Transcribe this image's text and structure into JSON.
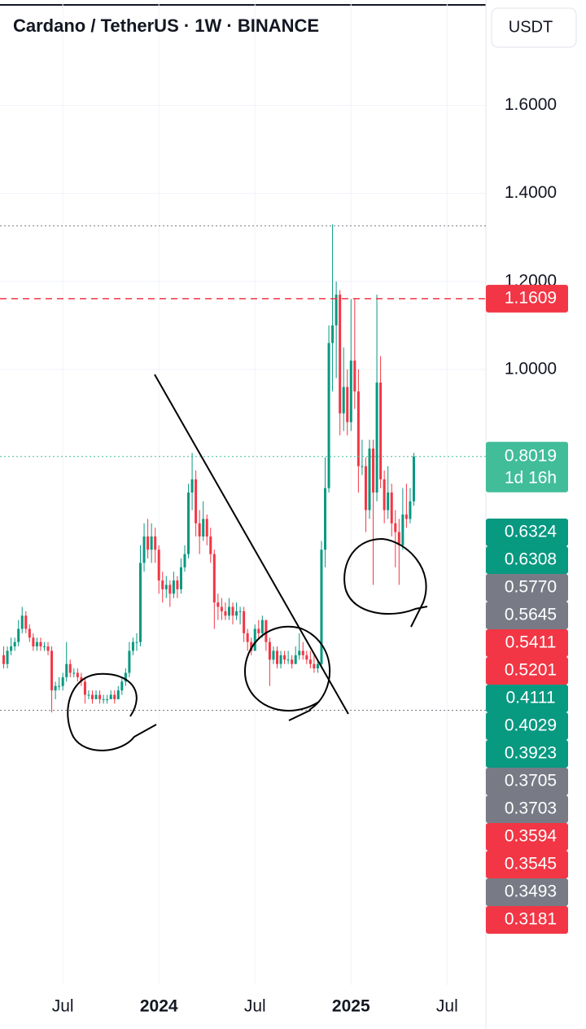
{
  "chart_data": {
    "type": "candlestick",
    "title": "Cardano / TetherUS · 1W · BINANCE",
    "currency": "USDT",
    "colors": {
      "up": "#089981",
      "down": "#f23645"
    },
    "open": [
      0.35,
      0.33,
      0.36,
      0.37,
      0.38,
      0.41,
      0.44,
      0.41,
      0.39,
      0.37,
      0.38,
      0.37,
      0.37,
      0.36,
      0.27,
      0.28,
      0.28,
      0.3,
      0.33,
      0.31,
      0.31,
      0.3,
      0.29,
      0.26,
      0.26,
      0.25,
      0.26,
      0.25,
      0.25,
      0.25,
      0.26,
      0.25,
      0.27,
      0.29,
      0.31,
      0.36,
      0.38,
      0.38,
      0.56,
      0.62,
      0.59,
      0.62,
      0.59,
      0.52,
      0.5,
      0.51,
      0.49,
      0.52,
      0.5,
      0.55,
      0.58,
      0.72,
      0.75,
      0.65,
      0.62,
      0.66,
      0.62,
      0.58,
      0.47,
      0.46,
      0.45,
      0.44,
      0.46,
      0.44,
      0.45,
      0.45,
      0.4,
      0.38,
      0.36,
      0.41,
      0.4,
      0.43,
      0.38,
      0.34,
      0.36,
      0.33,
      0.35,
      0.34,
      0.34,
      0.33,
      0.35,
      0.36,
      0.35,
      0.34,
      0.33,
      0.32,
      0.33,
      0.59,
      0.73,
      1.06,
      1.1,
      1.17,
      0.9,
      0.96,
      0.88,
      1.02,
      0.95,
      0.78,
      0.78,
      0.68,
      0.82,
      0.72,
      0.97,
      0.75,
      0.68,
      0.72,
      0.65,
      0.63,
      0.6,
      0.67,
      0.66,
      0.7
    ],
    "high": [
      0.37,
      0.37,
      0.39,
      0.39,
      0.43,
      0.46,
      0.45,
      0.42,
      0.4,
      0.39,
      0.39,
      0.38,
      0.38,
      0.37,
      0.29,
      0.3,
      0.31,
      0.38,
      0.34,
      0.32,
      0.32,
      0.31,
      0.3,
      0.27,
      0.27,
      0.27,
      0.27,
      0.26,
      0.26,
      0.27,
      0.27,
      0.28,
      0.3,
      0.32,
      0.38,
      0.39,
      0.4,
      0.6,
      0.65,
      0.66,
      0.65,
      0.64,
      0.6,
      0.54,
      0.53,
      0.52,
      0.54,
      0.53,
      0.57,
      0.6,
      0.74,
      0.81,
      0.77,
      0.68,
      0.7,
      0.67,
      0.64,
      0.59,
      0.49,
      0.48,
      0.47,
      0.48,
      0.47,
      0.47,
      0.46,
      0.46,
      0.41,
      0.39,
      0.42,
      0.43,
      0.44,
      0.43,
      0.39,
      0.37,
      0.37,
      0.36,
      0.36,
      0.36,
      0.35,
      0.37,
      0.4,
      0.38,
      0.36,
      0.36,
      0.35,
      0.34,
      0.61,
      0.8,
      1.1,
      1.33,
      1.2,
      1.18,
      1.05,
      1.0,
      1.16,
      1.16,
      1.0,
      0.84,
      0.8,
      0.84,
      0.84,
      1.17,
      1.03,
      0.77,
      0.78,
      0.74,
      0.68,
      0.66,
      0.73,
      0.74,
      0.73,
      0.81
    ],
    "low": [
      0.32,
      0.32,
      0.35,
      0.36,
      0.37,
      0.4,
      0.4,
      0.38,
      0.36,
      0.36,
      0.36,
      0.36,
      0.35,
      0.22,
      0.25,
      0.27,
      0.27,
      0.29,
      0.3,
      0.3,
      0.29,
      0.28,
      0.24,
      0.25,
      0.24,
      0.25,
      0.24,
      0.24,
      0.24,
      0.25,
      0.24,
      0.25,
      0.26,
      0.28,
      0.3,
      0.35,
      0.36,
      0.37,
      0.54,
      0.57,
      0.56,
      0.56,
      0.49,
      0.47,
      0.48,
      0.46,
      0.48,
      0.48,
      0.49,
      0.54,
      0.57,
      0.68,
      0.62,
      0.58,
      0.61,
      0.6,
      0.56,
      0.41,
      0.43,
      0.43,
      0.43,
      0.43,
      0.42,
      0.43,
      0.42,
      0.38,
      0.36,
      0.35,
      0.36,
      0.39,
      0.39,
      0.36,
      0.28,
      0.33,
      0.32,
      0.32,
      0.33,
      0.33,
      0.32,
      0.33,
      0.34,
      0.34,
      0.33,
      0.32,
      0.31,
      0.31,
      0.32,
      0.55,
      0.72,
      0.95,
      0.98,
      0.85,
      0.86,
      0.85,
      0.86,
      0.91,
      0.72,
      0.76,
      0.63,
      0.66,
      0.51,
      0.7,
      0.73,
      0.65,
      0.66,
      0.62,
      0.55,
      0.51,
      0.59,
      0.64,
      0.65,
      0.69
    ],
    "close": [
      0.33,
      0.36,
      0.37,
      0.38,
      0.41,
      0.44,
      0.41,
      0.39,
      0.37,
      0.38,
      0.37,
      0.37,
      0.36,
      0.27,
      0.28,
      0.28,
      0.3,
      0.33,
      0.31,
      0.31,
      0.3,
      0.29,
      0.26,
      0.26,
      0.25,
      0.26,
      0.25,
      0.25,
      0.25,
      0.26,
      0.25,
      0.27,
      0.29,
      0.31,
      0.36,
      0.38,
      0.38,
      0.56,
      0.62,
      0.59,
      0.62,
      0.59,
      0.52,
      0.5,
      0.51,
      0.49,
      0.52,
      0.5,
      0.55,
      0.58,
      0.72,
      0.75,
      0.65,
      0.62,
      0.66,
      0.62,
      0.58,
      0.47,
      0.46,
      0.45,
      0.44,
      0.46,
      0.44,
      0.45,
      0.45,
      0.4,
      0.38,
      0.36,
      0.41,
      0.4,
      0.43,
      0.38,
      0.34,
      0.36,
      0.33,
      0.35,
      0.34,
      0.34,
      0.33,
      0.35,
      0.36,
      0.35,
      0.34,
      0.33,
      0.32,
      0.33,
      0.59,
      0.73,
      1.06,
      1.1,
      1.17,
      0.9,
      0.96,
      0.88,
      1.02,
      0.95,
      0.78,
      0.78,
      0.68,
      0.82,
      0.72,
      0.97,
      0.75,
      0.68,
      0.72,
      0.65,
      0.63,
      0.6,
      0.67,
      0.66,
      0.7,
      0.8019
    ],
    "xlim": [
      -1,
      130.5
    ],
    "xticks": [
      {
        "value": 16,
        "label": "Jul"
      },
      {
        "value": 42,
        "label": "2024"
      },
      {
        "value": 68,
        "label": "Jul"
      },
      {
        "value": 94,
        "label": "2025"
      },
      {
        "value": 120,
        "label": "Jul"
      }
    ],
    "ylim": [
      -0.4,
      1.84
    ],
    "yticks": [
      {
        "value": 1.6,
        "label": "1.6000"
      },
      {
        "value": 1.4,
        "label": "1.4000"
      },
      {
        "value": 1.2,
        "label": "1.2000"
      },
      {
        "value": 1.0,
        "label": "1.0000"
      }
    ],
    "grid": true,
    "hlines": [
      1.3264,
      0.2248
    ],
    "price_line": {
      "value": 1.1609,
      "color": "#f23645"
    },
    "last_price": {
      "value": 0.8019,
      "countdown": "1d 16h",
      "color": "#42bd9a"
    },
    "price_labels": [
      {
        "value": 0.6324,
        "label": "0.6324",
        "color": "#089981"
      },
      {
        "value": 0.6308,
        "label": "0.6308",
        "color": "#089981"
      },
      {
        "value": 0.577,
        "label": "0.5770",
        "color": "#787b86"
      },
      {
        "value": 0.5645,
        "label": "0.5645",
        "color": "#787b86"
      },
      {
        "value": 0.5411,
        "label": "0.5411",
        "color": "#f23645"
      },
      {
        "value": 0.5201,
        "label": "0.5201",
        "color": "#f23645"
      },
      {
        "value": 0.4111,
        "label": "0.4111",
        "color": "#089981"
      },
      {
        "value": 0.4029,
        "label": "0.4029",
        "color": "#089981"
      },
      {
        "value": 0.3923,
        "label": "0.3923",
        "color": "#089981"
      },
      {
        "value": 0.3705,
        "label": "0.3705",
        "color": "#787b86"
      },
      {
        "value": 0.3703,
        "label": "0.3703",
        "color": "#787b86"
      },
      {
        "value": 0.3594,
        "label": "0.3594",
        "color": "#f23645"
      },
      {
        "value": 0.3545,
        "label": "0.3545",
        "color": "#f23645"
      },
      {
        "value": 0.3493,
        "label": "0.3493",
        "color": "#787b86"
      },
      {
        "value": 0.3181,
        "label": "0.3181",
        "color": "#f23645"
      }
    ]
  }
}
